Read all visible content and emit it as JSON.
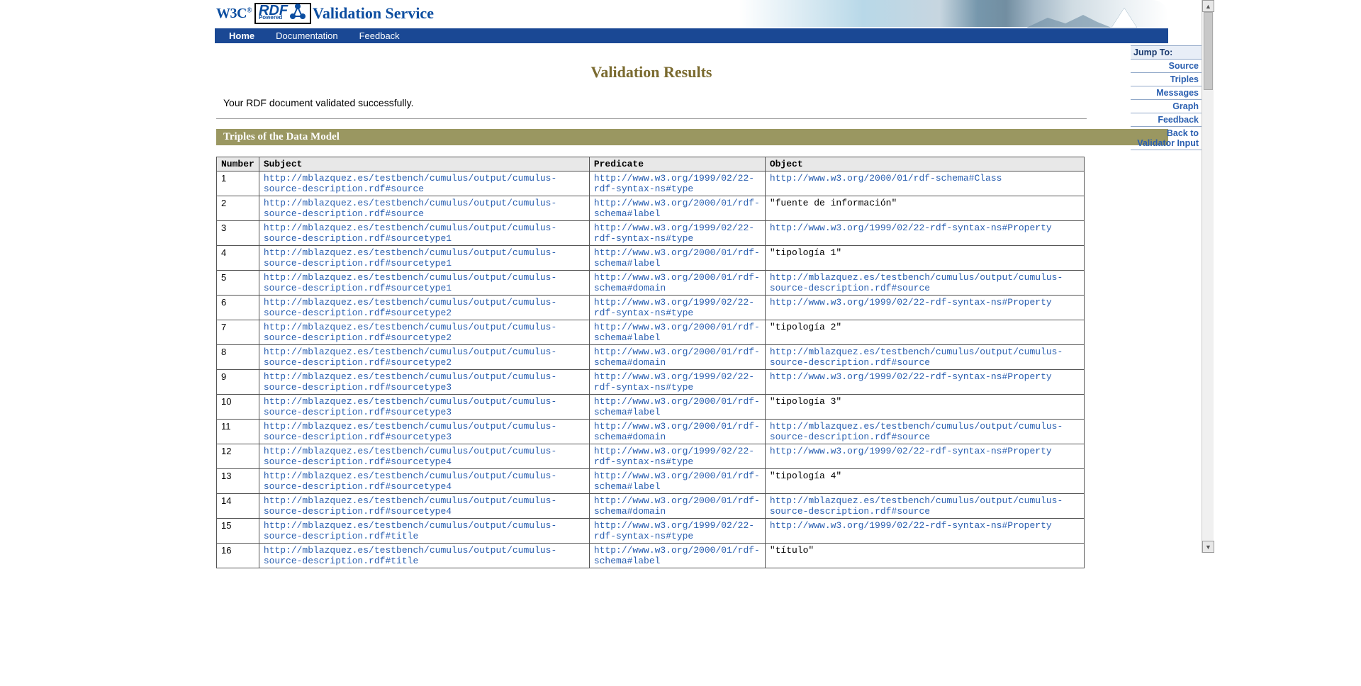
{
  "header": {
    "w3c": "W3C",
    "rdf": "RDF",
    "powered": "Powered",
    "title": "Validation Service"
  },
  "nav": {
    "home": "Home",
    "documentation": "Documentation",
    "feedback": "Feedback"
  },
  "jump": {
    "title": "Jump To:",
    "items": [
      "Source",
      "Triples",
      "Messages",
      "Graph",
      "Feedback",
      "Back to Validator Input"
    ]
  },
  "results": {
    "title": "Validation Results",
    "success": "Your RDF document validated successfully.",
    "section": "Triples of the Data Model"
  },
  "table": {
    "headers": {
      "number": "Number",
      "subject": "Subject",
      "predicate": "Predicate",
      "object": "Object"
    },
    "rows": [
      {
        "n": "1",
        "s": "http://mblazquez.es/testbench/cumulus/output/cumulus-source-description.rdf#source",
        "p": "http://www.w3.org/1999/02/22-rdf-syntax-ns#type",
        "o": "http://www.w3.org/2000/01/rdf-schema#Class",
        "link": true
      },
      {
        "n": "2",
        "s": "http://mblazquez.es/testbench/cumulus/output/cumulus-source-description.rdf#source",
        "p": "http://www.w3.org/2000/01/rdf-schema#label",
        "o": "\"fuente de información\"",
        "link": false
      },
      {
        "n": "3",
        "s": "http://mblazquez.es/testbench/cumulus/output/cumulus-source-description.rdf#sourcetype1",
        "p": "http://www.w3.org/1999/02/22-rdf-syntax-ns#type",
        "o": "http://www.w3.org/1999/02/22-rdf-syntax-ns#Property",
        "link": true
      },
      {
        "n": "4",
        "s": "http://mblazquez.es/testbench/cumulus/output/cumulus-source-description.rdf#sourcetype1",
        "p": "http://www.w3.org/2000/01/rdf-schema#label",
        "o": "\"tipología 1\"",
        "link": false
      },
      {
        "n": "5",
        "s": "http://mblazquez.es/testbench/cumulus/output/cumulus-source-description.rdf#sourcetype1",
        "p": "http://www.w3.org/2000/01/rdf-schema#domain",
        "o": "http://mblazquez.es/testbench/cumulus/output/cumulus-source-description.rdf#source",
        "link": true
      },
      {
        "n": "6",
        "s": "http://mblazquez.es/testbench/cumulus/output/cumulus-source-description.rdf#sourcetype2",
        "p": "http://www.w3.org/1999/02/22-rdf-syntax-ns#type",
        "o": "http://www.w3.org/1999/02/22-rdf-syntax-ns#Property",
        "link": true
      },
      {
        "n": "7",
        "s": "http://mblazquez.es/testbench/cumulus/output/cumulus-source-description.rdf#sourcetype2",
        "p": "http://www.w3.org/2000/01/rdf-schema#label",
        "o": "\"tipología 2\"",
        "link": false
      },
      {
        "n": "8",
        "s": "http://mblazquez.es/testbench/cumulus/output/cumulus-source-description.rdf#sourcetype2",
        "p": "http://www.w3.org/2000/01/rdf-schema#domain",
        "o": "http://mblazquez.es/testbench/cumulus/output/cumulus-source-description.rdf#source",
        "link": true
      },
      {
        "n": "9",
        "s": "http://mblazquez.es/testbench/cumulus/output/cumulus-source-description.rdf#sourcetype3",
        "p": "http://www.w3.org/1999/02/22-rdf-syntax-ns#type",
        "o": "http://www.w3.org/1999/02/22-rdf-syntax-ns#Property",
        "link": true
      },
      {
        "n": "10",
        "s": "http://mblazquez.es/testbench/cumulus/output/cumulus-source-description.rdf#sourcetype3",
        "p": "http://www.w3.org/2000/01/rdf-schema#label",
        "o": "\"tipología 3\"",
        "link": false
      },
      {
        "n": "11",
        "s": "http://mblazquez.es/testbench/cumulus/output/cumulus-source-description.rdf#sourcetype3",
        "p": "http://www.w3.org/2000/01/rdf-schema#domain",
        "o": "http://mblazquez.es/testbench/cumulus/output/cumulus-source-description.rdf#source",
        "link": true
      },
      {
        "n": "12",
        "s": "http://mblazquez.es/testbench/cumulus/output/cumulus-source-description.rdf#sourcetype4",
        "p": "http://www.w3.org/1999/02/22-rdf-syntax-ns#type",
        "o": "http://www.w3.org/1999/02/22-rdf-syntax-ns#Property",
        "link": true
      },
      {
        "n": "13",
        "s": "http://mblazquez.es/testbench/cumulus/output/cumulus-source-description.rdf#sourcetype4",
        "p": "http://www.w3.org/2000/01/rdf-schema#label",
        "o": "\"tipología 4\"",
        "link": false
      },
      {
        "n": "14",
        "s": "http://mblazquez.es/testbench/cumulus/output/cumulus-source-description.rdf#sourcetype4",
        "p": "http://www.w3.org/2000/01/rdf-schema#domain",
        "o": "http://mblazquez.es/testbench/cumulus/output/cumulus-source-description.rdf#source",
        "link": true
      },
      {
        "n": "15",
        "s": "http://mblazquez.es/testbench/cumulus/output/cumulus-source-description.rdf#title",
        "p": "http://www.w3.org/1999/02/22-rdf-syntax-ns#type",
        "o": "http://www.w3.org/1999/02/22-rdf-syntax-ns#Property",
        "link": true
      },
      {
        "n": "16",
        "s": "http://mblazquez.es/testbench/cumulus/output/cumulus-source-description.rdf#title",
        "p": "http://www.w3.org/2000/01/rdf-schema#label",
        "o": "\"título\"",
        "link": false
      }
    ]
  }
}
